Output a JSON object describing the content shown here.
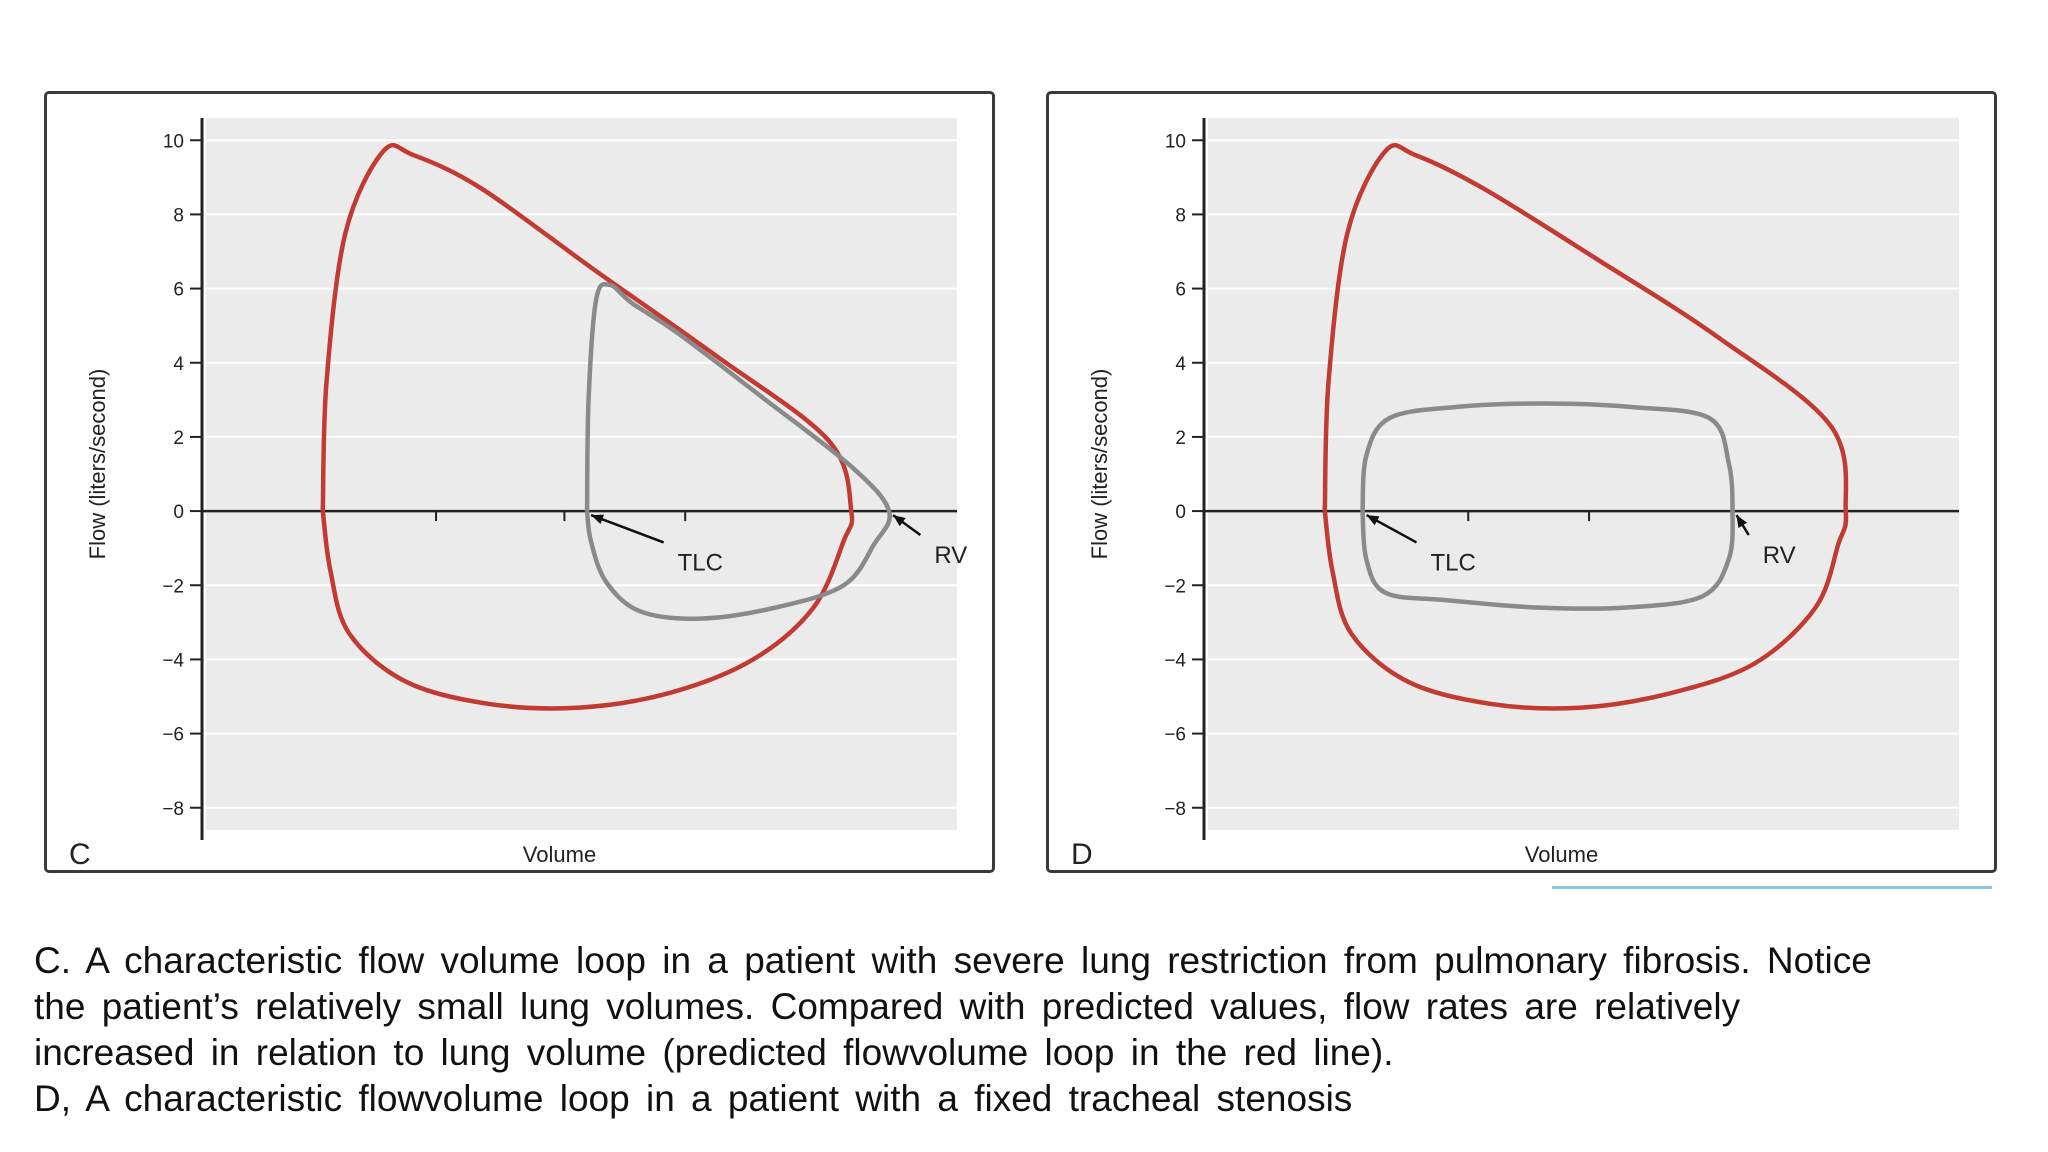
{
  "chart_data": [
    {
      "type": "line",
      "panel_label": "C",
      "xlabel": "Volume",
      "ylabel": "Flow (liters/second)",
      "ylim": [
        -8.6,
        10.6
      ],
      "xlim": [
        0,
        10
      ],
      "yticks": [
        10,
        8,
        6,
        4,
        2,
        0,
        -2,
        -4,
        -6,
        -8
      ],
      "ytick_labels": [
        "10",
        "8",
        "6",
        "4",
        "2",
        "0",
        "−2",
        "−4",
        "−6",
        "−8"
      ],
      "xticks_minor": [
        3.1,
        4.8,
        6.4
      ],
      "grid": true,
      "series": [
        {
          "name": "",
          "color": "#c23b32",
          "points": [
            [
              1.6,
              0
            ],
            [
              1.65,
              3.5
            ],
            [
              1.9,
              7.5
            ],
            [
              2.4,
              9.7
            ],
            [
              2.8,
              9.6
            ],
            [
              3.7,
              8.7
            ],
            [
              5.2,
              6.5
            ],
            [
              6.8,
              4.2
            ],
            [
              8.3,
              1.9
            ],
            [
              8.6,
              0
            ],
            [
              8.5,
              -0.8
            ],
            [
              8.1,
              -2.6
            ],
            [
              7.3,
              -4.0
            ],
            [
              6.2,
              -4.9
            ],
            [
              5.0,
              -5.3
            ],
            [
              3.8,
              -5.2
            ],
            [
              2.7,
              -4.6
            ],
            [
              1.95,
              -3.3
            ],
            [
              1.7,
              -1.6
            ],
            [
              1.6,
              0
            ]
          ]
        },
        {
          "name": "",
          "color": "#8a8a8a",
          "points": [
            [
              5.1,
              0
            ],
            [
              5.12,
              3.0
            ],
            [
              5.22,
              5.7
            ],
            [
              5.4,
              6.1
            ],
            [
              5.7,
              5.6
            ],
            [
              6.3,
              4.8
            ],
            [
              7.4,
              3.1
            ],
            [
              8.6,
              1.2
            ],
            [
              9.1,
              0
            ],
            [
              8.9,
              -0.9
            ],
            [
              8.5,
              -2.0
            ],
            [
              7.6,
              -2.6
            ],
            [
              6.6,
              -2.9
            ],
            [
              5.8,
              -2.7
            ],
            [
              5.35,
              -1.9
            ],
            [
              5.15,
              -0.8
            ],
            [
              5.1,
              0
            ]
          ]
        }
      ],
      "annotations": [
        {
          "text": "TLC",
          "at": [
            5.1,
            0
          ],
          "label_at": [
            6.3,
            -1.6
          ]
        },
        {
          "text": "RV",
          "at": [
            9.1,
            0
          ],
          "label_at": [
            9.7,
            -1.4
          ]
        }
      ]
    },
    {
      "type": "line",
      "panel_label": "D",
      "xlabel": "Volume",
      "ylabel": "Flow (liters/second)",
      "ylim": [
        -8.6,
        10.6
      ],
      "xlim": [
        0,
        10
      ],
      "yticks": [
        10,
        8,
        6,
        4,
        2,
        0,
        -2,
        -4,
        -6,
        -8
      ],
      "ytick_labels": [
        "10",
        "8",
        "6",
        "4",
        "2",
        "0",
        "−2",
        "−4",
        "−6",
        "−8"
      ],
      "xticks_minor": [
        3.5,
        5.1
      ],
      "grid": true,
      "series": [
        {
          "name": "",
          "color": "#c23b32",
          "points": [
            [
              1.6,
              0
            ],
            [
              1.65,
              3.5
            ],
            [
              1.9,
              7.5
            ],
            [
              2.4,
              9.7
            ],
            [
              2.8,
              9.6
            ],
            [
              3.7,
              8.7
            ],
            [
              5.2,
              6.8
            ],
            [
              6.8,
              4.7
            ],
            [
              8.3,
              2.3
            ],
            [
              8.5,
              0
            ],
            [
              8.4,
              -0.9
            ],
            [
              8.1,
              -2.6
            ],
            [
              7.3,
              -4.1
            ],
            [
              6.2,
              -4.9
            ],
            [
              5.0,
              -5.3
            ],
            [
              3.8,
              -5.2
            ],
            [
              2.7,
              -4.6
            ],
            [
              1.95,
              -3.3
            ],
            [
              1.7,
              -1.6
            ],
            [
              1.6,
              0
            ]
          ]
        },
        {
          "name": "",
          "color": "#8a8a8a",
          "points": [
            [
              2.1,
              0
            ],
            [
              2.15,
              1.5
            ],
            [
              2.45,
              2.5
            ],
            [
              3.3,
              2.8
            ],
            [
              4.5,
              2.9
            ],
            [
              5.7,
              2.8
            ],
            [
              6.7,
              2.5
            ],
            [
              6.95,
              1.3
            ],
            [
              7.0,
              0
            ],
            [
              6.95,
              -1.3
            ],
            [
              6.6,
              -2.3
            ],
            [
              5.6,
              -2.6
            ],
            [
              4.4,
              -2.6
            ],
            [
              3.2,
              -2.4
            ],
            [
              2.4,
              -2.2
            ],
            [
              2.15,
              -1.3
            ],
            [
              2.1,
              0
            ]
          ]
        }
      ],
      "annotations": [
        {
          "text": "TLC",
          "at": [
            2.1,
            0
          ],
          "label_at": [
            3.0,
            -1.6
          ]
        },
        {
          "text": "RV",
          "at": [
            7.0,
            0
          ],
          "label_at": [
            7.4,
            -1.4
          ]
        }
      ]
    }
  ],
  "caption": {
    "line1": "C. A characteristic flow volume loop in a patient with severe lung restriction from pulmonary fibrosis. Notice",
    "line2": "the patient’s relatively small lung volumes. Compared with predicted values, flow rates are relatively",
    "line3": "increased in relation to lung  volume (predicted flowvolume loop in the red line).",
    "line4": "D, A characteristic flowvolume loop in a patient with a fixed tracheal stenosis"
  },
  "colors": {
    "predicted_loop": "#c23b32",
    "patient_loop": "#8a8a8a",
    "plot_background": "#ebebeb",
    "gridline": "#ffffff",
    "accent_line": "#8ec3e6"
  }
}
